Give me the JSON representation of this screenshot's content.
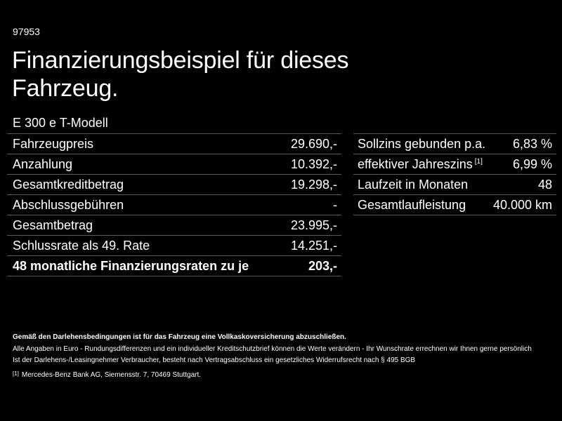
{
  "header": {
    "ref_number": "97953",
    "title_line1": "Finanzierungsbeispiel für dieses",
    "title_line2": "Fahrzeug.",
    "model": "E 300 e T-Modell"
  },
  "left_table": {
    "rows": [
      {
        "label": "Fahrzeugpreis",
        "value": "29.690,-"
      },
      {
        "label": "Anzahlung",
        "value": "10.392,-"
      },
      {
        "label": "Gesamtkreditbetrag",
        "value": "19.298,-"
      },
      {
        "label": "Abschlussgebühren",
        "value": "-"
      },
      {
        "label": "Gesamtbetrag",
        "value": "23.995,-"
      },
      {
        "label": "Schlussrate als 49. Rate",
        "value": "14.251,-"
      },
      {
        "label": "48 monatliche Finanzierungsraten zu je",
        "value": "203,-"
      }
    ]
  },
  "right_table": {
    "rows": [
      {
        "label": "Sollzins gebunden p.a.",
        "value": "6,83 %"
      },
      {
        "label": "effektiver Jahreszins",
        "footnote": "[1]",
        "value": "6,99 %"
      },
      {
        "label": "Laufzeit in Monaten",
        "value": "48"
      },
      {
        "label": "Gesamtlaufleistung",
        "value": "40.000 km"
      }
    ]
  },
  "footer": {
    "insurance_note": "Gemäß den Darlehensbedingungen ist für das Fahrzeug eine Vollkaskoversicherung abzuschließen.",
    "disclaimer": "Alle Angaben in Euro - Rundungsdifferenzen und ein individueller Kreditschutzbrief können die Werte verändern - Ihr Wunschrate errechnen wir Ihnen gerne persönlich",
    "withdrawal_note": "Ist der Darlehens-/Leasingnehmer Verbraucher, besteht nach Vertragsabschluss ein gesetzliches Widerrufsrecht nach § 495 BGB",
    "footnote_mark": "[1]",
    "footnote_text": "Mercedes-Benz Bank AG, Siemensstr. 7, 70469 Stuttgart."
  }
}
